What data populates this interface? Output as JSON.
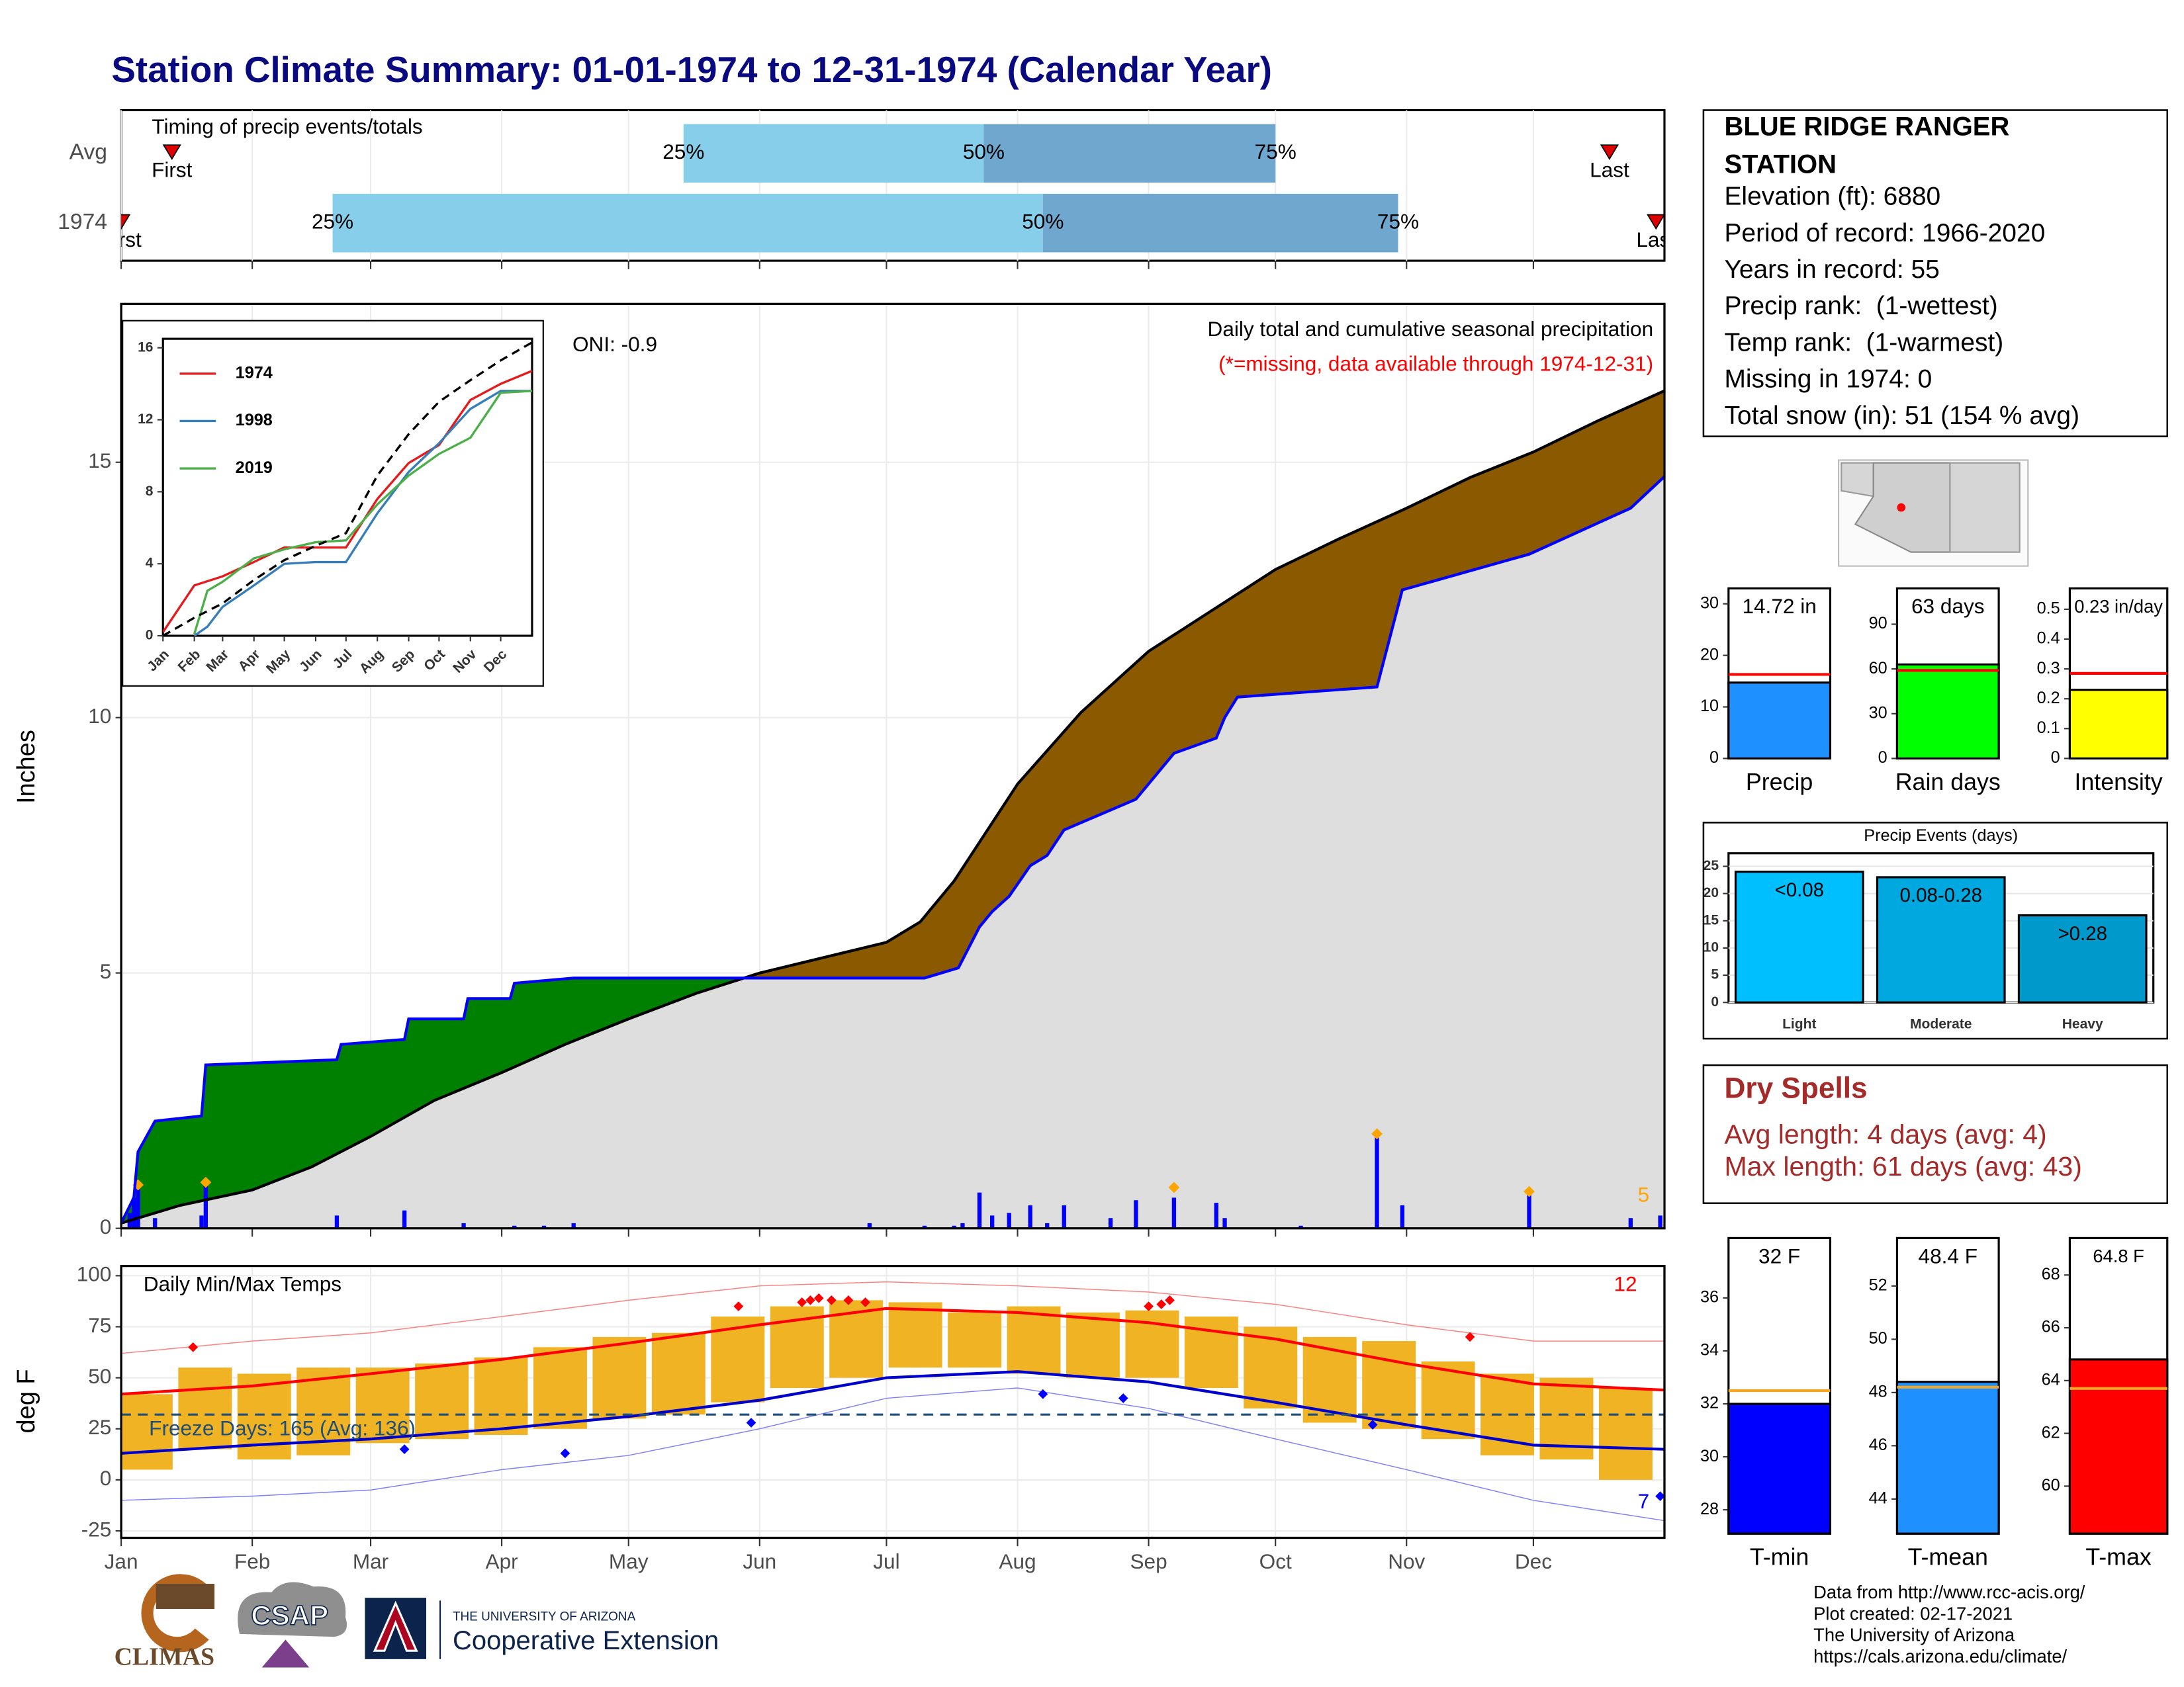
{
  "title": "Station Climate Summary: 01-01-1974 to 12-31-1974 (Calendar Year)",
  "chart_data": [
    {
      "type": "timeline",
      "title": "Timing of precip events/totals",
      "categories": [
        "Avg",
        "1974"
      ],
      "xlim": [
        1,
        366
      ],
      "rows": [
        {
          "first": 13,
          "q25": 134,
          "q50": 205,
          "q75": 274,
          "last": 353
        },
        {
          "first": 1,
          "q25": 51,
          "q50": 219,
          "q75": 303,
          "last": 364
        }
      ],
      "labels": {
        "first": "First",
        "q25": "25%",
        "q50": "50%",
        "q75": "75%",
        "last": "Last"
      },
      "colors": {
        "early": "#87ceeb",
        "late": "#6fa7cf",
        "marker": "#dd0000"
      }
    },
    {
      "type": "area",
      "ylabel": "Inches",
      "title": "Daily total and cumulative seasonal precipitation",
      "subtitle": "(*=missing, data available through 1974-12-31)",
      "oni": "ONI: -0.9",
      "top_event_count": 5,
      "xlim": [
        1,
        366
      ],
      "ylim": [
        0,
        18.1
      ],
      "yticks": [
        0,
        5,
        10,
        15
      ],
      "base_fill": "#dedede",
      "average": {
        "color": "#000000",
        "fill": "#8b5a00",
        "x": [
          1,
          15,
          32,
          46,
          60,
          75,
          91,
          106,
          121,
          137,
          152,
          167,
          182,
          190,
          198,
          213,
          228,
          244,
          259,
          274,
          289,
          305,
          320,
          335,
          350,
          366
        ],
        "values": [
          0.1,
          0.45,
          0.75,
          1.2,
          1.8,
          2.5,
          3.05,
          3.6,
          4.1,
          4.6,
          5.0,
          5.3,
          5.6,
          6.0,
          6.8,
          8.7,
          10.1,
          11.3,
          12.1,
          12.9,
          13.5,
          14.1,
          14.7,
          15.2,
          15.8,
          16.4
        ]
      },
      "current": {
        "color": "#0000ff",
        "fill": "#008000",
        "x": [
          1,
          4,
          5,
          9,
          20,
          21,
          52,
          53,
          68,
          69,
          82,
          83,
          93,
          94,
          108,
          191,
          199,
          204,
          207,
          211,
          216,
          220,
          224,
          241,
          250,
          260,
          262,
          265,
          298,
          304,
          334,
          358,
          366
        ],
        "values": [
          0.1,
          0.6,
          1.5,
          2.1,
          2.2,
          3.2,
          3.3,
          3.6,
          3.7,
          4.1,
          4.1,
          4.5,
          4.5,
          4.8,
          4.9,
          4.9,
          5.1,
          5.9,
          6.2,
          6.5,
          7.1,
          7.3,
          7.8,
          8.4,
          9.3,
          9.6,
          10.0,
          10.4,
          10.6,
          12.5,
          13.2,
          14.1,
          14.72
        ]
      },
      "daily": {
        "color": "#0000ff",
        "x": [
          3,
          4,
          5,
          9,
          20,
          21,
          52,
          68,
          82,
          94,
          101,
          108,
          178,
          191,
          198,
          200,
          204,
          207,
          211,
          216,
          220,
          224,
          235,
          241,
          250,
          260,
          262,
          280,
          298,
          304,
          334,
          358,
          365
        ],
        "values": [
          0.3,
          0.6,
          0.85,
          0.2,
          0.25,
          0.85,
          0.25,
          0.35,
          0.1,
          0.05,
          0.05,
          0.1,
          0.1,
          0.05,
          0.05,
          0.1,
          0.7,
          0.25,
          0.3,
          0.45,
          0.1,
          0.45,
          0.2,
          0.55,
          0.6,
          0.5,
          0.2,
          0.05,
          1.8,
          0.45,
          0.7,
          0.2,
          0.25
        ]
      },
      "top_events": {
        "color": "#ffa500",
        "x": [
          5,
          21,
          250,
          298,
          334
        ],
        "values": [
          0.85,
          0.9,
          0.8,
          1.85,
          0.72
        ]
      }
    },
    {
      "type": "line",
      "xlim": [
        1,
        366
      ],
      "ylim": [
        0,
        16.5
      ],
      "yticks": [
        0,
        4,
        8,
        12,
        16
      ],
      "xticks": [
        {
          "value": 1,
          "label": "Jan"
        },
        {
          "value": 32,
          "label": "Feb"
        },
        {
          "value": 60,
          "label": "Mar"
        },
        {
          "value": 91,
          "label": "Apr"
        },
        {
          "value": 121,
          "label": "May"
        },
        {
          "value": 152,
          "label": "Jun"
        },
        {
          "value": 182,
          "label": "Jul"
        },
        {
          "value": 213,
          "label": "Aug"
        },
        {
          "value": 244,
          "label": "Sep"
        },
        {
          "value": 274,
          "label": "Oct"
        },
        {
          "value": 305,
          "label": "Nov"
        },
        {
          "value": 335,
          "label": "Dec"
        }
      ],
      "series": [
        {
          "name": "1974",
          "color": "#e41a1c",
          "x": [
            1,
            32,
            60,
            91,
            121,
            152,
            182,
            213,
            244,
            274,
            305,
            335,
            366
          ],
          "values": [
            0.2,
            2.8,
            3.3,
            4.1,
            4.9,
            4.9,
            4.9,
            7.6,
            9.6,
            10.6,
            13.1,
            14.0,
            14.72
          ]
        },
        {
          "name": "1998",
          "color": "#377eb8",
          "x": [
            32,
            45,
            60,
            91,
            121,
            152,
            182,
            213,
            244,
            274,
            305,
            335,
            366
          ],
          "values": [
            0,
            0.5,
            1.6,
            2.8,
            4.0,
            4.1,
            4.1,
            6.8,
            9.1,
            10.7,
            12.6,
            13.6,
            13.6
          ]
        },
        {
          "name": "2019",
          "color": "#4daf4a",
          "x": [
            32,
            45,
            60,
            91,
            121,
            152,
            182,
            213,
            244,
            274,
            305,
            335,
            366
          ],
          "values": [
            0.1,
            2.5,
            3.0,
            4.3,
            4.8,
            5.2,
            5.3,
            7.3,
            8.9,
            10.1,
            11.0,
            13.5,
            13.6
          ]
        }
      ],
      "average": {
        "color": "#000000",
        "dash": true,
        "x": [
          1,
          32,
          60,
          91,
          121,
          152,
          182,
          213,
          244,
          274,
          305,
          335,
          366
        ],
        "values": [
          0,
          1.0,
          1.8,
          3.1,
          4.2,
          5.0,
          5.7,
          8.9,
          11.2,
          13.0,
          14.2,
          15.3,
          16.3
        ]
      }
    },
    {
      "type": "temperature",
      "title": "Daily Min/Max Temps",
      "ylabel": "deg F",
      "xlim": [
        1,
        366
      ],
      "ylim": [
        -28.4,
        104.8
      ],
      "yticks": [
        -25,
        0,
        25,
        50,
        75,
        100
      ],
      "xticks": [
        {
          "value": 1,
          "label": "Jan"
        },
        {
          "value": 32,
          "label": "Feb"
        },
        {
          "value": 60,
          "label": "Mar"
        },
        {
          "value": 91,
          "label": "Apr"
        },
        {
          "value": 121,
          "label": "May"
        },
        {
          "value": 152,
          "label": "Jun"
        },
        {
          "value": 182,
          "label": "Jul"
        },
        {
          "value": 213,
          "label": "Aug"
        },
        {
          "value": 244,
          "label": "Sep"
        },
        {
          "value": 274,
          "label": "Oct"
        },
        {
          "value": 305,
          "label": "Nov"
        },
        {
          "value": 335,
          "label": "Dec"
        }
      ],
      "freeze": {
        "value": 32,
        "color": "#1f4e79",
        "label": "Freeze Days: 165 (Avg: 136)"
      },
      "bars": {
        "color": "#f0b323",
        "x": [
          7,
          21,
          35,
          49,
          63,
          77,
          91,
          105,
          119,
          133,
          147,
          161,
          175,
          189,
          203,
          217,
          231,
          245,
          259,
          273,
          287,
          301,
          315,
          329,
          343,
          357
        ],
        "low": [
          5,
          15,
          10,
          12,
          18,
          20,
          22,
          25,
          30,
          32,
          38,
          45,
          50,
          55,
          55,
          52,
          50,
          50,
          45,
          35,
          28,
          25,
          20,
          12,
          10,
          0
        ],
        "high": [
          42,
          55,
          52,
          55,
          55,
          57,
          60,
          65,
          70,
          72,
          80,
          85,
          88,
          87,
          82,
          85,
          82,
          83,
          80,
          75,
          70,
          68,
          58,
          52,
          50,
          45
        ]
      },
      "series": [
        {
          "color": "#ff0000",
          "width": 2,
          "x": [
            1,
            32,
            60,
            91,
            121,
            152,
            182,
            213,
            244,
            274,
            305,
            335,
            366
          ],
          "values": [
            42,
            46,
            52,
            59,
            67,
            76,
            84,
            82,
            77,
            69,
            57,
            47,
            44
          ]
        },
        {
          "color": "#0000cc",
          "width": 2,
          "x": [
            1,
            32,
            60,
            91,
            121,
            152,
            182,
            213,
            244,
            274,
            305,
            335,
            366
          ],
          "values": [
            13,
            17,
            20,
            25,
            31,
            39,
            50,
            53,
            48,
            38,
            27,
            17,
            15
          ]
        },
        {
          "color": "#ff8080",
          "width": 0.7,
          "x": [
            1,
            32,
            60,
            91,
            121,
            152,
            182,
            213,
            244,
            274,
            305,
            335,
            366
          ],
          "values": [
            62,
            68,
            72,
            80,
            88,
            95,
            97,
            95,
            92,
            86,
            76,
            68,
            68
          ]
        },
        {
          "color": "#7f7fff",
          "width": 0.7,
          "x": [
            1,
            32,
            60,
            91,
            121,
            152,
            182,
            213,
            244,
            274,
            305,
            335,
            366
          ],
          "values": [
            -10,
            -8,
            -5,
            5,
            12,
            25,
            40,
            45,
            35,
            20,
            5,
            -10,
            -20
          ]
        }
      ],
      "record_highs": {
        "count": 12,
        "color": "#ff0000",
        "x": [
          18,
          147,
          162,
          164,
          166,
          169,
          173,
          177,
          244,
          247,
          249,
          320
        ],
        "values": [
          65,
          85,
          87,
          88,
          89,
          88,
          88,
          87,
          85,
          86,
          88,
          70
        ]
      },
      "record_lows": {
        "count": 7,
        "color": "#0000ff",
        "x": [
          68,
          106,
          150,
          219,
          238,
          297,
          365
        ],
        "values": [
          15,
          13,
          28,
          42,
          40,
          27,
          -8
        ]
      }
    },
    {
      "type": "bar",
      "categories": [
        "Precip"
      ],
      "values": [
        14.72
      ],
      "value_labels": [
        "14.72 in"
      ],
      "reference": 16.3,
      "ref_color": "#ff0000",
      "color": "#1e90ff",
      "ylim": [
        0,
        33
      ],
      "yticks": [
        0,
        10,
        20,
        30
      ]
    },
    {
      "type": "bar",
      "categories": [
        "Rain days"
      ],
      "values": [
        63
      ],
      "value_labels": [
        "63 days"
      ],
      "reference": 59,
      "ref_color": "#ff0000",
      "color": "#00ff00",
      "ylim": [
        0,
        114
      ],
      "yticks": [
        0,
        30,
        60,
        90
      ]
    },
    {
      "type": "bar",
      "categories": [
        "Intensity"
      ],
      "values": [
        0.23
      ],
      "value_labels": [
        "0.23 in/day"
      ],
      "reference": 0.285,
      "ref_color": "#ff0000",
      "color": "#ffff00",
      "ylim": [
        0,
        0.57
      ],
      "yticks": [
        0,
        0.1,
        0.2,
        0.3,
        0.4,
        0.5
      ]
    },
    {
      "type": "bar",
      "title": "Precip Events (days)",
      "categories": [
        "Light",
        "Moderate",
        "Heavy"
      ],
      "values": [
        24,
        23,
        16
      ],
      "bin_labels": [
        "<0.08",
        "0.08-0.28",
        ">0.28"
      ],
      "colors": [
        "#00bfff",
        "#00a8e0",
        "#0099cc"
      ],
      "ylim": [
        0,
        27.4
      ],
      "yticks": [
        0,
        5,
        10,
        15,
        20,
        25
      ],
      "grid": true
    },
    {
      "type": "bar",
      "categories": [
        "T-min"
      ],
      "values": [
        32
      ],
      "value_labels": [
        "32 F"
      ],
      "reference": 32.5,
      "ref_color": "#f5a623",
      "color": "#0000ff",
      "ylim": [
        27.1,
        38.26
      ],
      "yticks": [
        28,
        30,
        32,
        34,
        36
      ]
    },
    {
      "type": "bar",
      "categories": [
        "T-mean"
      ],
      "values": [
        48.4
      ],
      "value_labels": [
        "48.4 F"
      ],
      "reference": 48.2,
      "ref_color": "#f5a623",
      "color": "#1e90ff",
      "ylim": [
        42.7,
        53.8
      ],
      "yticks": [
        44,
        46,
        48,
        50,
        52
      ]
    },
    {
      "type": "bar",
      "categories": [
        "T-max"
      ],
      "values": [
        64.8
      ],
      "value_labels": [
        "64.8 F"
      ],
      "reference": 63.7,
      "ref_color": "#f5a623",
      "color": "#ff0000",
      "ylim": [
        58.2,
        69.4
      ],
      "yticks": [
        60,
        62,
        64,
        66,
        68
      ]
    }
  ],
  "station": {
    "name_lines": [
      "BLUE RIDGE RANGER",
      "STATION"
    ],
    "lines": [
      "Elevation (ft): 6880",
      "Period of record: 1966-2020",
      "Years in record: 55",
      "Precip rank:  (1-wettest)",
      "Temp rank:  (1-warmest)",
      "Missing in 1974: 0",
      "Total snow (in): 51 (154 % avg)"
    ]
  },
  "dry_spells": {
    "title": "Dry Spells",
    "color": "#a52a2a",
    "lines": [
      "Avg length: 4 days (avg: 4)",
      "Max length: 61 days (avg: 43)"
    ]
  },
  "footer": {
    "lines": [
      "Data from http://www.rcc-acis.org/",
      "Plot created: 02-17-2021",
      "The University of Arizona",
      "https://cals.arizona.edu/climate/"
    ]
  },
  "logos": {
    "climas": "CLIMAS",
    "csap": "CSAP",
    "university": "THE UNIVERSITY OF ARIZONA",
    "extension": "Cooperative Extension"
  }
}
